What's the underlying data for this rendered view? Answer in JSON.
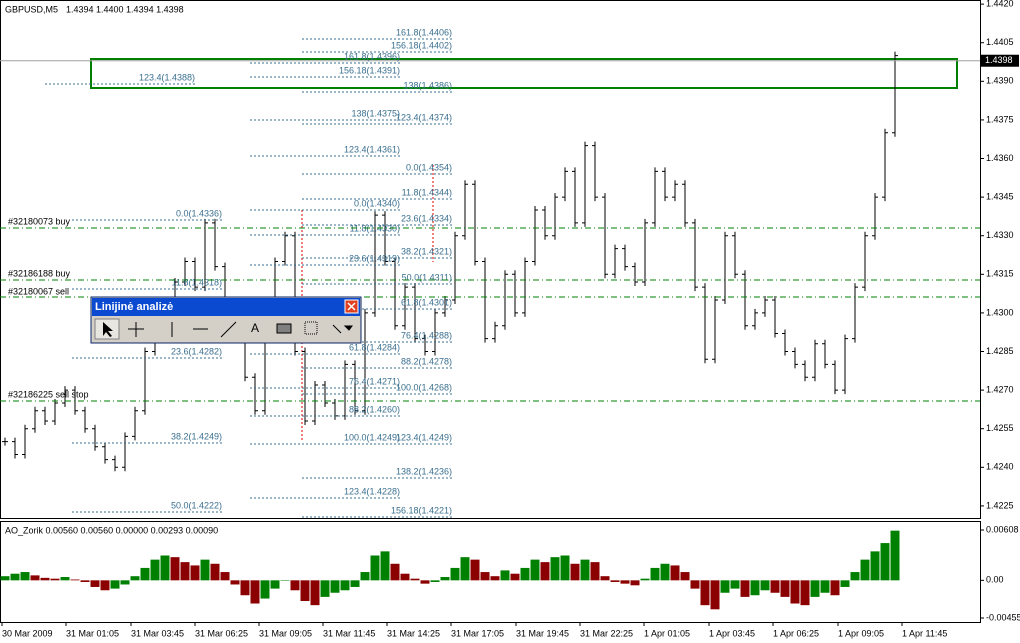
{
  "chart_data": [
    {
      "type": "bars",
      "title": "GBPUSD,M5",
      "subtitle": "1.4394 1.4400 1.4394 1.4398",
      "color": "#000000",
      "values": [
        1.425,
        1.4245,
        1.4255,
        1.4262,
        1.4258,
        1.4265,
        1.427,
        1.4262,
        1.4255,
        1.4248,
        1.4243,
        1.424,
        1.4252,
        1.4262,
        1.4285,
        1.43,
        1.4295,
        1.4312,
        1.432,
        1.431,
        1.4335,
        1.4318,
        1.43,
        1.429,
        1.4275,
        1.4262,
        1.429,
        1.432,
        1.433,
        1.4285,
        1.4258,
        1.4272,
        1.4265,
        1.426,
        1.428,
        1.4262,
        1.43,
        1.4338,
        1.432,
        1.4295,
        1.431,
        1.429,
        1.4285,
        1.43,
        1.4305,
        1.433,
        1.435,
        1.432,
        1.429,
        1.4295,
        1.4315,
        1.43,
        1.432,
        1.434,
        1.433,
        1.4345,
        1.4355,
        1.4335,
        1.4365,
        1.4345,
        1.4315,
        1.4325,
        1.4318,
        1.4312,
        1.4335,
        1.4355,
        1.4345,
        1.435,
        1.4335,
        1.431,
        1.4282,
        1.4305,
        1.433,
        1.4315,
        1.4295,
        1.43,
        1.4305,
        1.4292,
        1.4285,
        1.428,
        1.4275,
        1.4288,
        1.428,
        1.427,
        1.429,
        1.431,
        1.433,
        1.4345,
        1.437,
        1.44
      ],
      "ylim": [
        1.42203,
        1.44216
      ],
      "yticks": [
        {
          "value": 1.442,
          "label": "1.4420"
        },
        1.4405,
        {
          "value": 1.439,
          "label": "1.4390"
        },
        1.4375,
        {
          "value": 1.436,
          "label": "1.4360"
        },
        1.4345,
        {
          "value": 1.433,
          "label": "1.4330"
        },
        1.4315,
        {
          "value": 1.43,
          "label": "1.4300"
        },
        1.4285,
        {
          "value": 1.427,
          "label": "1.4270"
        },
        1.4255,
        {
          "value": 1.424,
          "label": "1.4240"
        },
        1.4225
      ],
      "current_price": 1.4398
    },
    {
      "type": "bar",
      "title": "AO_Zorik 0.00560 0.00560 0.00000 0.00293 0.00090",
      "up_color": "#008000",
      "down_color": "#8b0000",
      "values": [
        0.0005,
        0.0008,
        0.001,
        0.0006,
        0.0003,
        0.0002,
        0.0004,
        0.0001,
        -0.0002,
        -0.0008,
        -0.0012,
        -0.001,
        -0.0005,
        0.0005,
        0.0015,
        0.0025,
        0.003,
        0.0028,
        0.0022,
        0.0018,
        0.0025,
        0.002,
        0.001,
        -0.0005,
        -0.0018,
        -0.0028,
        -0.0022,
        -0.001,
        0.0,
        -0.0012,
        -0.0025,
        -0.003,
        -0.002,
        -0.0015,
        -0.0012,
        -0.0008,
        0.001,
        0.003,
        0.0035,
        0.002,
        0.0008,
        0.0002,
        -0.0004,
        -0.0002,
        0.0004,
        0.0015,
        0.0028,
        0.0025,
        0.001,
        0.0005,
        0.0012,
        0.0008,
        0.0015,
        0.0025,
        0.0022,
        0.0028,
        0.003,
        0.002,
        0.0025,
        0.0022,
        0.0005,
        -0.0002,
        -0.0004,
        -0.0006,
        0.0002,
        0.0015,
        0.002,
        0.0018,
        0.001,
        -0.001,
        -0.003,
        -0.0035,
        -0.0015,
        -0.001,
        -0.002,
        -0.0018,
        -0.0012,
        -0.0015,
        -0.002,
        -0.0028,
        -0.003,
        -0.002,
        -0.0015,
        -0.0018,
        -0.0008,
        0.001,
        0.0025,
        0.0035,
        0.0045,
        0.006
      ],
      "ylim": [
        -0.00455,
        0.00608
      ],
      "yticks": [
        0.00608,
        {
          "value": 0,
          "label": "0.00"
        },
        -0.00455
      ]
    }
  ],
  "time_axis": [
    "30 Mar 2009",
    "31 Mar 01:05",
    "31 Mar 03:45",
    "31 Mar 06:25",
    "31 Mar 09:05",
    "31 Mar 11:45",
    "31 Mar 14:25",
    "31 Mar 17:05",
    "31 Mar 19:45",
    "31 Mar 22:25",
    "1 Apr 01:05",
    "1 Apr 03:45",
    "1 Apr 06:25",
    "1 Apr 09:05",
    "1 Apr 11:45"
  ],
  "fibonacci_labels": [
    "161.8(1.4406)",
    "156.18(1.4402)",
    "138(1.4386)",
    "123.4(1.4374)",
    "0.0(1.4354)",
    "11.8(1.4344)",
    "23.6(1.4334)",
    "38.2(1.4321)",
    "50.0(1.4311)",
    "61.8(1.4301)",
    "76.4(1.4288)",
    "88.2(1.4278)",
    "100.0(1.4268)",
    "123.4(1.4249)",
    "138.2(1.4236)",
    "156.18(1.4221)",
    "161.8(1.4396)",
    "156.18(1.4391)",
    "138(1.4375)",
    "123.4(1.4361)",
    "0.0(1.4340)",
    "11.8(1.4330)",
    "23.6(1.4319)",
    "61.8(1.4284)",
    "76.4(1.4271)",
    "88.2(1.4260)",
    "100.0(1.4249)",
    "123.4(1.4228)",
    "0.0(1.4336)",
    "11.8(1.4318)",
    "23.6(1.4282)",
    "38.2(1.4249)",
    "50.0(1.4222)",
    "123.4(1.4388)"
  ],
  "orders": [
    "#32180073 buy",
    "#32186188 buy",
    "#32180067 sell",
    "#32186225 sell stop"
  ],
  "toolbar": {
    "title": "Linijinė analizė",
    "text_tool": "A"
  }
}
